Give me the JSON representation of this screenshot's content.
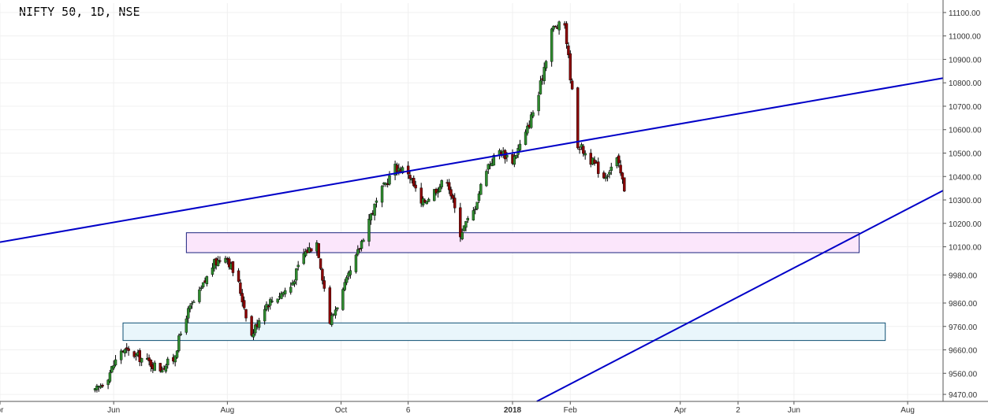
{
  "title": "NIFTY 50, 1D, NSE",
  "colors": {
    "up": "#2e8b2e",
    "down": "#8b0000",
    "trendline": "#0000c8",
    "zone_upper_fill": "#fbe6fb",
    "zone_upper_stroke": "#1a237e",
    "zone_lower_fill": "#e9f6fb",
    "zone_lower_stroke": "#0d4f73",
    "axis_text": "#333333",
    "grid": "#f0f0f0"
  },
  "chart_data": {
    "type": "candlestick",
    "title": "NIFTY 50, 1D, NSE",
    "ylim": [
      9440,
      11140
    ],
    "y_ticks": [
      11100,
      11000,
      10900,
      10800,
      10700,
      10600,
      10500,
      10400,
      10300,
      10200,
      10100,
      9980,
      9860,
      9760,
      9660,
      9560,
      9470
    ],
    "y_tick_labels": [
      "11100.00",
      "11000.00",
      "10900.00",
      "10800.00",
      "10700.00",
      "10600.00",
      "10500.00",
      "10400.00",
      "10300.00",
      "10200.00",
      "10100.00",
      "9980.00",
      "9860.00",
      "9760.00",
      "9660.00",
      "9560.00",
      "9470.00"
    ],
    "x_range": [
      "2017-04-01",
      "2018-08-20"
    ],
    "x_ticks": [
      {
        "label": "pr",
        "date": "2017-04-01"
      },
      {
        "label": "Jun",
        "date": "2017-06-01"
      },
      {
        "label": "Aug",
        "date": "2017-08-01"
      },
      {
        "label": "Oct",
        "date": "2017-10-01"
      },
      {
        "label": "6",
        "date": "2017-11-06"
      },
      {
        "label": "2018",
        "date": "2018-01-01",
        "bold": true
      },
      {
        "label": "Feb",
        "date": "2018-02-01"
      },
      {
        "label": "Apr",
        "date": "2018-04-01"
      },
      {
        "label": "2",
        "date": "2018-05-02"
      },
      {
        "label": "Jun",
        "date": "2018-06-01"
      },
      {
        "label": "Aug",
        "date": "2018-08-01"
      }
    ],
    "grid": true,
    "waypoints": [
      [
        "2017-05-22",
        9480
      ],
      [
        "2017-05-29",
        9550
      ],
      [
        "2017-06-05",
        9660
      ],
      [
        "2017-06-12",
        9640
      ],
      [
        "2017-06-19",
        9610
      ],
      [
        "2017-06-26",
        9580
      ],
      [
        "2017-07-03",
        9620
      ],
      [
        "2017-07-10",
        9810
      ],
      [
        "2017-07-17",
        9900
      ],
      [
        "2017-07-24",
        10020
      ],
      [
        "2017-07-31",
        10070
      ],
      [
        "2017-08-07",
        9940
      ],
      [
        "2017-08-14",
        9720
      ],
      [
        "2017-08-21",
        9850
      ],
      [
        "2017-08-28",
        9890
      ],
      [
        "2017-09-04",
        9930
      ],
      [
        "2017-09-11",
        10070
      ],
      [
        "2017-09-18",
        10120
      ],
      [
        "2017-09-25",
        9780
      ],
      [
        "2017-10-02",
        9910
      ],
      [
        "2017-10-09",
        10050
      ],
      [
        "2017-10-16",
        10220
      ],
      [
        "2017-10-23",
        10340
      ],
      [
        "2017-10-30",
        10440
      ],
      [
        "2017-11-06",
        10420
      ],
      [
        "2017-11-13",
        10280
      ],
      [
        "2017-11-20",
        10340
      ],
      [
        "2017-11-27",
        10390
      ],
      [
        "2017-12-04",
        10160
      ],
      [
        "2017-12-11",
        10250
      ],
      [
        "2017-12-18",
        10440
      ],
      [
        "2017-12-25",
        10510
      ],
      [
        "2018-01-01",
        10470
      ],
      [
        "2018-01-08",
        10580
      ],
      [
        "2018-01-15",
        10750
      ],
      [
        "2018-01-22",
        11030
      ],
      [
        "2018-01-29",
        11050
      ],
      [
        "2018-02-05",
        10540
      ],
      [
        "2018-02-12",
        10470
      ],
      [
        "2018-02-19",
        10400
      ],
      [
        "2018-02-26",
        10470
      ],
      [
        "2018-03-05",
        10260
      ]
    ],
    "zones": [
      {
        "from": "2017-06-06",
        "to": "2018-07-20",
        "low": 9700,
        "high": 9775,
        "style": "lower"
      },
      {
        "from": "2017-07-10",
        "to": "2018-07-06",
        "low": 10075,
        "high": 10160,
        "style": "upper"
      }
    ],
    "trendlines": [
      {
        "from": [
          "2017-04-01",
          10120
        ],
        "to": [
          "2018-08-20",
          10820
        ]
      },
      {
        "from": [
          "2018-01-14",
          9440
        ],
        "to": [
          "2018-08-20",
          10340
        ]
      }
    ]
  }
}
